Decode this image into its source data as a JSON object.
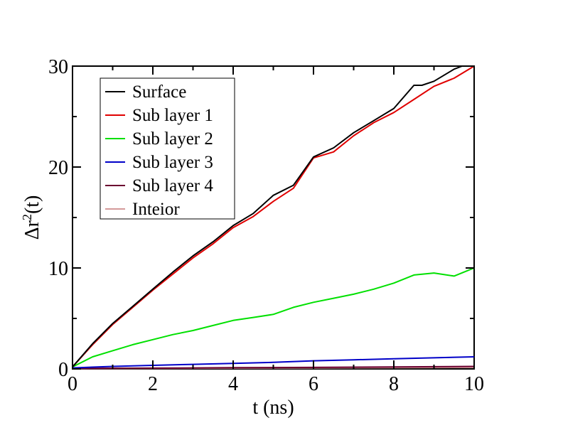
{
  "chart_data": {
    "type": "line",
    "xlabel": "t (ns)",
    "ylabel_parts": {
      "base": "Δr",
      "sup": "2",
      "rest": "(t)"
    },
    "xlim": [
      0,
      10
    ],
    "ylim": [
      0,
      30
    ],
    "xticks": [
      0,
      2,
      4,
      6,
      8,
      10
    ],
    "yticks": [
      0,
      10,
      20,
      30
    ],
    "xtick_labels": [
      "0",
      "2",
      "4",
      "6",
      "8",
      "10"
    ],
    "ytick_labels": [
      "0",
      "10",
      "20",
      "30"
    ],
    "grid": false,
    "legend_position": "top-left",
    "series": [
      {
        "name": "Surface",
        "color": "#000000",
        "x": [
          0,
          0.5,
          1,
          1.5,
          2,
          2.5,
          3,
          3.5,
          4,
          4.5,
          5,
          5.5,
          6,
          6.5,
          7,
          7.5,
          8,
          8.5,
          8.7,
          9,
          9.5,
          9.7
        ],
        "y": [
          0.2,
          2.5,
          4.5,
          6.2,
          7.9,
          9.6,
          11.2,
          12.6,
          14.2,
          15.4,
          17.2,
          18.2,
          21.0,
          21.9,
          23.4,
          24.6,
          25.8,
          28.1,
          28.1,
          28.5,
          29.7,
          30
        ]
      },
      {
        "name": "Sub layer 1",
        "color": "#e00000",
        "x": [
          0,
          0.5,
          1,
          1.5,
          2,
          2.5,
          3,
          3.5,
          4,
          4.5,
          5,
          5.5,
          6,
          6.5,
          7,
          7.5,
          8,
          8.5,
          9,
          9.5,
          10
        ],
        "y": [
          0.2,
          2.4,
          4.4,
          6.1,
          7.8,
          9.4,
          11.0,
          12.4,
          14.0,
          15.1,
          16.6,
          17.9,
          20.9,
          21.5,
          23.1,
          24.4,
          25.4,
          26.7,
          28.0,
          28.8,
          30.0
        ]
      },
      {
        "name": "Sub layer 2",
        "color": "#00e000",
        "x": [
          0,
          0.5,
          1,
          1.5,
          2,
          2.5,
          3,
          3.5,
          4,
          4.5,
          5,
          5.5,
          6,
          6.5,
          7,
          7.5,
          8,
          8.5,
          9,
          9.5,
          10
        ],
        "y": [
          0.2,
          1.2,
          1.8,
          2.4,
          2.9,
          3.4,
          3.8,
          4.3,
          4.8,
          5.1,
          5.4,
          6.1,
          6.6,
          7.0,
          7.4,
          7.9,
          8.5,
          9.3,
          9.5,
          9.2,
          10.0
        ]
      },
      {
        "name": "Sub layer 3",
        "color": "#0000c8",
        "x": [
          0,
          1,
          2,
          3,
          4,
          5,
          6,
          7,
          8,
          9,
          10
        ],
        "y": [
          0.1,
          0.25,
          0.35,
          0.45,
          0.55,
          0.65,
          0.8,
          0.9,
          1.0,
          1.1,
          1.2
        ]
      },
      {
        "name": "Sub layer 4",
        "color": "#6b0030",
        "x": [
          0,
          2,
          4,
          6,
          8,
          10
        ],
        "y": [
          0.05,
          0.08,
          0.12,
          0.15,
          0.2,
          0.25
        ]
      },
      {
        "name": "Inteior",
        "color": "#d49a9a",
        "x": [
          0,
          2,
          4,
          6,
          8,
          10
        ],
        "y": [
          0.03,
          0.05,
          0.08,
          0.1,
          0.13,
          0.15
        ]
      }
    ]
  }
}
